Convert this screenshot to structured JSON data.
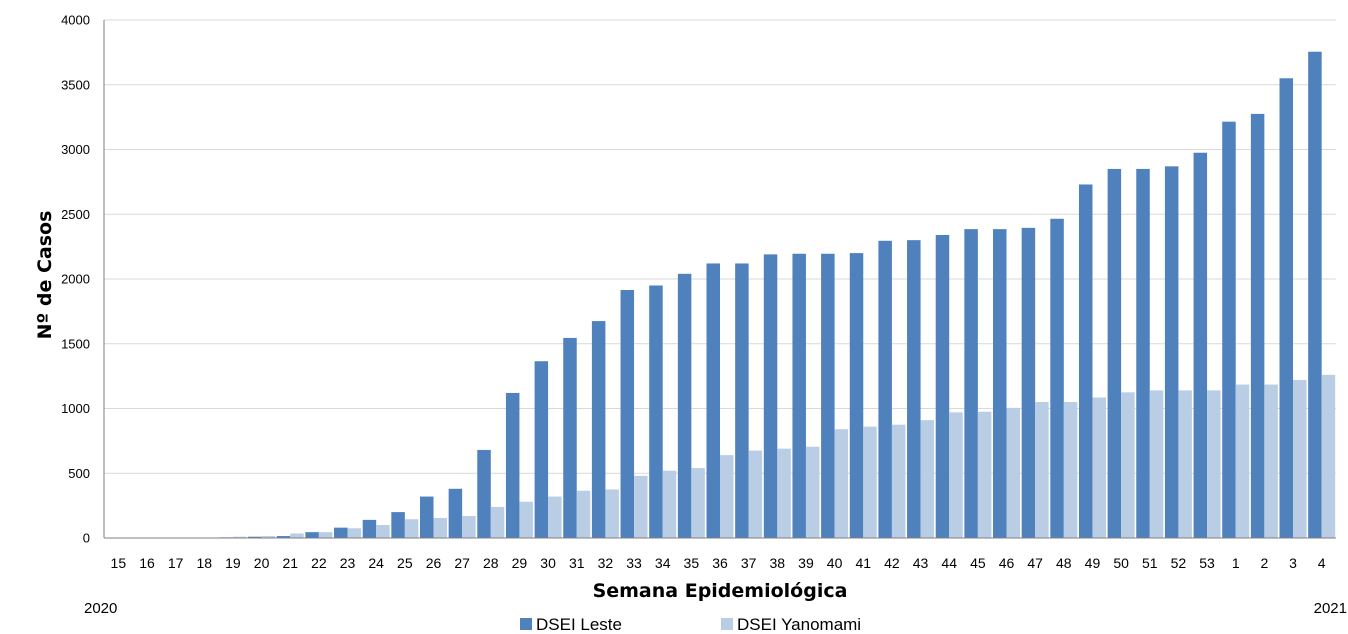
{
  "chart_data": {
    "type": "bar",
    "xlabel": "Semana Epidemiológica",
    "ylabel": "Nº de Casos",
    "ylim": [
      0,
      4000
    ],
    "yticks": [
      0,
      500,
      1000,
      1500,
      2000,
      2500,
      3000,
      3500,
      4000
    ],
    "grid": true,
    "legend_position": "bottom",
    "year_labels": {
      "start": "2020",
      "end": "2021"
    },
    "categories": [
      "15",
      "16",
      "17",
      "18",
      "19",
      "20",
      "21",
      "22",
      "23",
      "24",
      "25",
      "26",
      "27",
      "28",
      "29",
      "30",
      "31",
      "32",
      "33",
      "34",
      "35",
      "36",
      "37",
      "38",
      "39",
      "40",
      "41",
      "42",
      "43",
      "44",
      "45",
      "46",
      "47",
      "48",
      "49",
      "50",
      "51",
      "52",
      "53",
      "1",
      "2",
      "3",
      "4"
    ],
    "series": [
      {
        "name": "DSEI Leste",
        "color": "#4f81bd",
        "values": [
          0,
          0,
          0,
          2,
          5,
          10,
          15,
          45,
          80,
          140,
          200,
          320,
          380,
          680,
          1120,
          1365,
          1545,
          1675,
          1915,
          1950,
          2040,
          2120,
          2120,
          2190,
          2195,
          2195,
          2200,
          2295,
          2300,
          2340,
          2385,
          2385,
          2395,
          2465,
          2730,
          2850,
          2850,
          2870,
          2975,
          3215,
          3275,
          3550,
          3755
        ]
      },
      {
        "name": "DSEI Yanomami",
        "color": "#b9cde5",
        "values": [
          0,
          0,
          0,
          0,
          10,
          15,
          35,
          45,
          75,
          100,
          145,
          155,
          170,
          240,
          280,
          320,
          365,
          375,
          480,
          520,
          540,
          640,
          675,
          690,
          705,
          840,
          860,
          875,
          910,
          970,
          975,
          1005,
          1050,
          1050,
          1085,
          1125,
          1140,
          1140,
          1140,
          1185,
          1185,
          1220,
          1260
        ]
      }
    ]
  }
}
